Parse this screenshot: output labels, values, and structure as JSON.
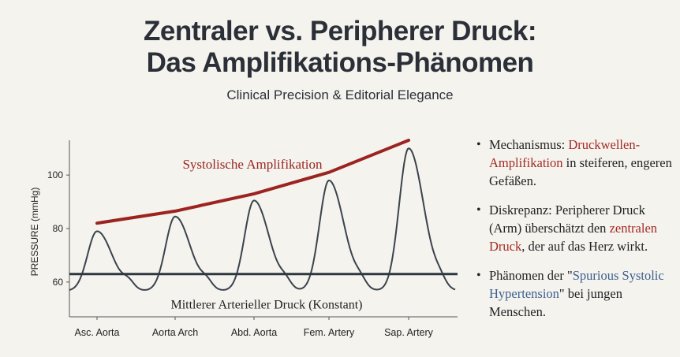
{
  "header": {
    "title_line1": "Zentraler vs. Peripherer Druck:",
    "title_line2": "Das Amplifikations-Phänomen",
    "subtitle": "Clinical Precision & Editorial Elegance"
  },
  "chart_data": {
    "type": "line",
    "ylabel": "PRESSURE (mmHg)",
    "yticks": [
      60,
      80,
      100
    ],
    "ylim": [
      47,
      113
    ],
    "categories": [
      "Asc. Aorta",
      "Aorta Arch",
      "Abd. Aorta",
      "Fem. Artery",
      "Sap. Artery"
    ],
    "series": [
      {
        "name": "Systolische Amplifikation",
        "color": "#9b2420",
        "x": [
          0,
          1,
          2,
          3,
          4
        ],
        "values": [
          82,
          86.5,
          93,
          101,
          113
        ]
      },
      {
        "name": "Mittlerer Arterieller Druck (Konstant)",
        "color": "#2e363f",
        "values": [
          63,
          63,
          63,
          63,
          63
        ]
      },
      {
        "name": "",
        "color": "#3b434d",
        "peaks": [
          79,
          84.5,
          90.5,
          98,
          110
        ]
      }
    ],
    "annotations": {
      "amplification_label": "Systolische Amplifikation",
      "map_label": "Mittlerer Arterieller Druck (Konstant)"
    }
  },
  "bullets": [
    {
      "parts": [
        {
          "text": "Mechanismus: ",
          "style": "plain"
        },
        {
          "text": "Druckwellen-Amplifikation",
          "style": "red"
        },
        {
          "text": " in steiferen, engeren Gefäßen.",
          "style": "plain"
        }
      ]
    },
    {
      "parts": [
        {
          "text": "Diskrepanz: Peripherer Druck (Arm) überschätzt den ",
          "style": "plain"
        },
        {
          "text": "zentralen Druck",
          "style": "red"
        },
        {
          "text": ", der auf das Herz wirkt.",
          "style": "plain"
        }
      ]
    },
    {
      "parts": [
        {
          "text": "Phänomen der \"",
          "style": "plain"
        },
        {
          "text": "Spurious Systolic Hypertension",
          "style": "blue"
        },
        {
          "text": "\" bei jungen Menschen.",
          "style": "plain"
        }
      ]
    }
  ]
}
